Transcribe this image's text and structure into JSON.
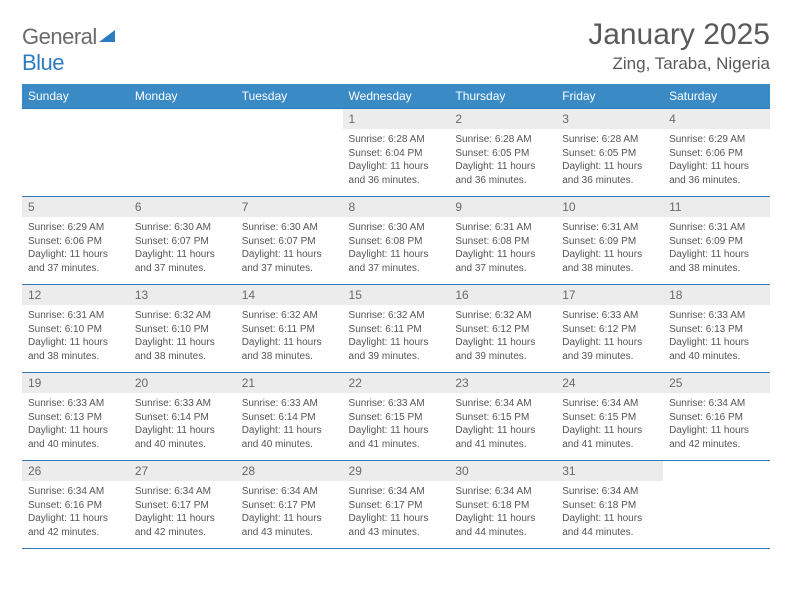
{
  "brand": {
    "name_a": "General",
    "name_b": "Blue"
  },
  "title": "January 2025",
  "location": "Zing, Taraba, Nigeria",
  "colors": {
    "header_bg": "#3a8ac6",
    "border": "#2d7cc0",
    "daynum_bg": "#ececec",
    "text": "#555555"
  },
  "weekdays": [
    "Sunday",
    "Monday",
    "Tuesday",
    "Wednesday",
    "Thursday",
    "Friday",
    "Saturday"
  ],
  "weeks": [
    [
      null,
      null,
      null,
      {
        "n": "1",
        "sr": "Sunrise: 6:28 AM",
        "ss": "Sunset: 6:04 PM",
        "d1": "Daylight: 11 hours",
        "d2": "and 36 minutes."
      },
      {
        "n": "2",
        "sr": "Sunrise: 6:28 AM",
        "ss": "Sunset: 6:05 PM",
        "d1": "Daylight: 11 hours",
        "d2": "and 36 minutes."
      },
      {
        "n": "3",
        "sr": "Sunrise: 6:28 AM",
        "ss": "Sunset: 6:05 PM",
        "d1": "Daylight: 11 hours",
        "d2": "and 36 minutes."
      },
      {
        "n": "4",
        "sr": "Sunrise: 6:29 AM",
        "ss": "Sunset: 6:06 PM",
        "d1": "Daylight: 11 hours",
        "d2": "and 36 minutes."
      }
    ],
    [
      {
        "n": "5",
        "sr": "Sunrise: 6:29 AM",
        "ss": "Sunset: 6:06 PM",
        "d1": "Daylight: 11 hours",
        "d2": "and 37 minutes."
      },
      {
        "n": "6",
        "sr": "Sunrise: 6:30 AM",
        "ss": "Sunset: 6:07 PM",
        "d1": "Daylight: 11 hours",
        "d2": "and 37 minutes."
      },
      {
        "n": "7",
        "sr": "Sunrise: 6:30 AM",
        "ss": "Sunset: 6:07 PM",
        "d1": "Daylight: 11 hours",
        "d2": "and 37 minutes."
      },
      {
        "n": "8",
        "sr": "Sunrise: 6:30 AM",
        "ss": "Sunset: 6:08 PM",
        "d1": "Daylight: 11 hours",
        "d2": "and 37 minutes."
      },
      {
        "n": "9",
        "sr": "Sunrise: 6:31 AM",
        "ss": "Sunset: 6:08 PM",
        "d1": "Daylight: 11 hours",
        "d2": "and 37 minutes."
      },
      {
        "n": "10",
        "sr": "Sunrise: 6:31 AM",
        "ss": "Sunset: 6:09 PM",
        "d1": "Daylight: 11 hours",
        "d2": "and 38 minutes."
      },
      {
        "n": "11",
        "sr": "Sunrise: 6:31 AM",
        "ss": "Sunset: 6:09 PM",
        "d1": "Daylight: 11 hours",
        "d2": "and 38 minutes."
      }
    ],
    [
      {
        "n": "12",
        "sr": "Sunrise: 6:31 AM",
        "ss": "Sunset: 6:10 PM",
        "d1": "Daylight: 11 hours",
        "d2": "and 38 minutes."
      },
      {
        "n": "13",
        "sr": "Sunrise: 6:32 AM",
        "ss": "Sunset: 6:10 PM",
        "d1": "Daylight: 11 hours",
        "d2": "and 38 minutes."
      },
      {
        "n": "14",
        "sr": "Sunrise: 6:32 AM",
        "ss": "Sunset: 6:11 PM",
        "d1": "Daylight: 11 hours",
        "d2": "and 38 minutes."
      },
      {
        "n": "15",
        "sr": "Sunrise: 6:32 AM",
        "ss": "Sunset: 6:11 PM",
        "d1": "Daylight: 11 hours",
        "d2": "and 39 minutes."
      },
      {
        "n": "16",
        "sr": "Sunrise: 6:32 AM",
        "ss": "Sunset: 6:12 PM",
        "d1": "Daylight: 11 hours",
        "d2": "and 39 minutes."
      },
      {
        "n": "17",
        "sr": "Sunrise: 6:33 AM",
        "ss": "Sunset: 6:12 PM",
        "d1": "Daylight: 11 hours",
        "d2": "and 39 minutes."
      },
      {
        "n": "18",
        "sr": "Sunrise: 6:33 AM",
        "ss": "Sunset: 6:13 PM",
        "d1": "Daylight: 11 hours",
        "d2": "and 40 minutes."
      }
    ],
    [
      {
        "n": "19",
        "sr": "Sunrise: 6:33 AM",
        "ss": "Sunset: 6:13 PM",
        "d1": "Daylight: 11 hours",
        "d2": "and 40 minutes."
      },
      {
        "n": "20",
        "sr": "Sunrise: 6:33 AM",
        "ss": "Sunset: 6:14 PM",
        "d1": "Daylight: 11 hours",
        "d2": "and 40 minutes."
      },
      {
        "n": "21",
        "sr": "Sunrise: 6:33 AM",
        "ss": "Sunset: 6:14 PM",
        "d1": "Daylight: 11 hours",
        "d2": "and 40 minutes."
      },
      {
        "n": "22",
        "sr": "Sunrise: 6:33 AM",
        "ss": "Sunset: 6:15 PM",
        "d1": "Daylight: 11 hours",
        "d2": "and 41 minutes."
      },
      {
        "n": "23",
        "sr": "Sunrise: 6:34 AM",
        "ss": "Sunset: 6:15 PM",
        "d1": "Daylight: 11 hours",
        "d2": "and 41 minutes."
      },
      {
        "n": "24",
        "sr": "Sunrise: 6:34 AM",
        "ss": "Sunset: 6:15 PM",
        "d1": "Daylight: 11 hours",
        "d2": "and 41 minutes."
      },
      {
        "n": "25",
        "sr": "Sunrise: 6:34 AM",
        "ss": "Sunset: 6:16 PM",
        "d1": "Daylight: 11 hours",
        "d2": "and 42 minutes."
      }
    ],
    [
      {
        "n": "26",
        "sr": "Sunrise: 6:34 AM",
        "ss": "Sunset: 6:16 PM",
        "d1": "Daylight: 11 hours",
        "d2": "and 42 minutes."
      },
      {
        "n": "27",
        "sr": "Sunrise: 6:34 AM",
        "ss": "Sunset: 6:17 PM",
        "d1": "Daylight: 11 hours",
        "d2": "and 42 minutes."
      },
      {
        "n": "28",
        "sr": "Sunrise: 6:34 AM",
        "ss": "Sunset: 6:17 PM",
        "d1": "Daylight: 11 hours",
        "d2": "and 43 minutes."
      },
      {
        "n": "29",
        "sr": "Sunrise: 6:34 AM",
        "ss": "Sunset: 6:17 PM",
        "d1": "Daylight: 11 hours",
        "d2": "and 43 minutes."
      },
      {
        "n": "30",
        "sr": "Sunrise: 6:34 AM",
        "ss": "Sunset: 6:18 PM",
        "d1": "Daylight: 11 hours",
        "d2": "and 44 minutes."
      },
      {
        "n": "31",
        "sr": "Sunrise: 6:34 AM",
        "ss": "Sunset: 6:18 PM",
        "d1": "Daylight: 11 hours",
        "d2": "and 44 minutes."
      },
      null
    ]
  ]
}
